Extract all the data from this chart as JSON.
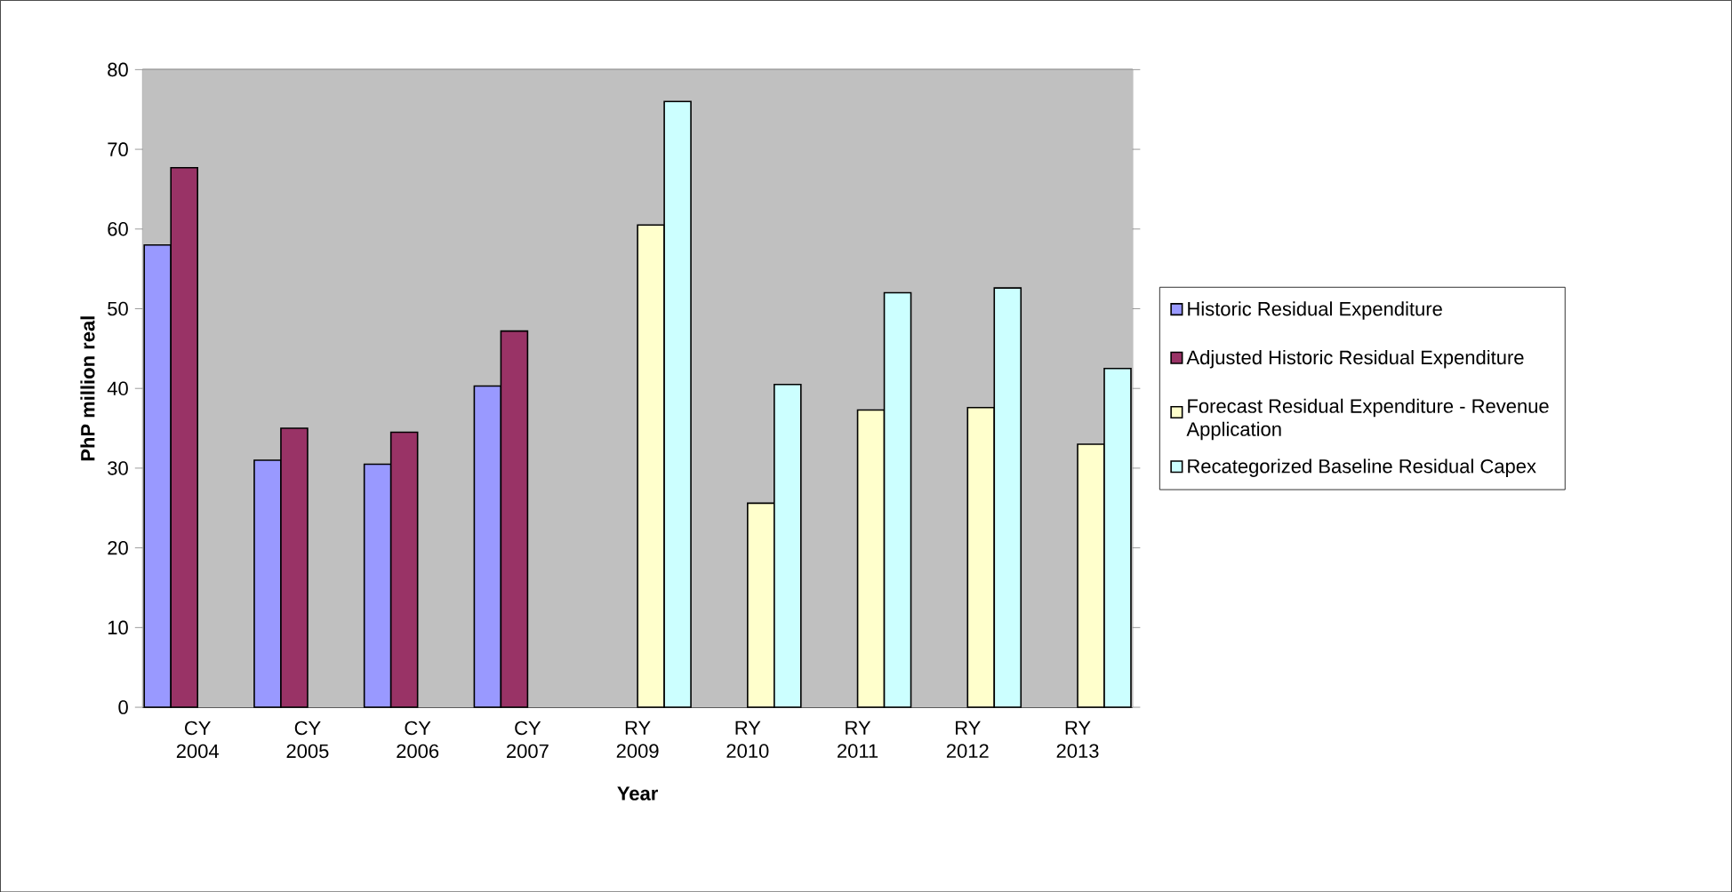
{
  "chart_data": {
    "type": "bar",
    "xlabel": "Year",
    "ylabel": "PhP million real",
    "categories": [
      "CY 2004",
      "CY 2005",
      "CY 2006",
      "CY 2007",
      "RY 2009",
      "RY 2010",
      "RY 2011",
      "RY 2012",
      "RY 2013"
    ],
    "series": [
      {
        "name": "Historic Residual Expenditure",
        "color": "#9999ff",
        "values": [
          58,
          31,
          30.5,
          40.3,
          null,
          null,
          null,
          null,
          null
        ]
      },
      {
        "name": "Adjusted Historic Residual Expenditure",
        "color": "#993366",
        "values": [
          67.7,
          35,
          34.5,
          47.2,
          null,
          null,
          null,
          null,
          null
        ]
      },
      {
        "name": "Forecast Residual Expenditure - Revenue Application",
        "color": "#ffffcc",
        "values": [
          null,
          null,
          null,
          null,
          60.5,
          25.6,
          37.3,
          37.6,
          33
        ]
      },
      {
        "name": "Recategorized Baseline Residual Capex",
        "color": "#ccffff",
        "values": [
          null,
          null,
          null,
          null,
          76,
          40.5,
          52,
          52.6,
          42.5
        ]
      }
    ],
    "ylim": [
      0,
      80
    ],
    "yticks": [
      0,
      10,
      20,
      30,
      40,
      50,
      60,
      70,
      80
    ],
    "grid": "y",
    "legend": "right"
  }
}
